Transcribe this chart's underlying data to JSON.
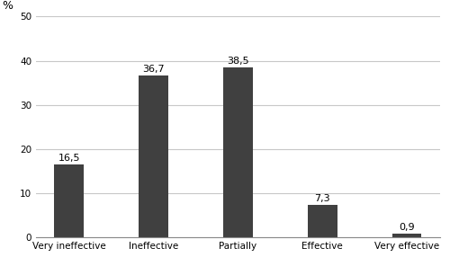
{
  "categories": [
    "Very ineffective",
    "Ineffective",
    "Partially",
    "Effective",
    "Very effective"
  ],
  "values": [
    16.5,
    36.7,
    38.5,
    7.3,
    0.9
  ],
  "labels": [
    "16,5",
    "36,7",
    "38,5",
    "7,3",
    "0,9"
  ],
  "bar_color": "#404040",
  "ylabel": "%",
  "ylim": [
    0,
    50
  ],
  "yticks": [
    0,
    10,
    20,
    30,
    40,
    50
  ],
  "bar_width": 0.35,
  "label_fontsize": 8,
  "tick_fontsize": 7.5,
  "ylabel_fontsize": 9,
  "background_color": "#ffffff",
  "grid_color": "#c8c8c8"
}
